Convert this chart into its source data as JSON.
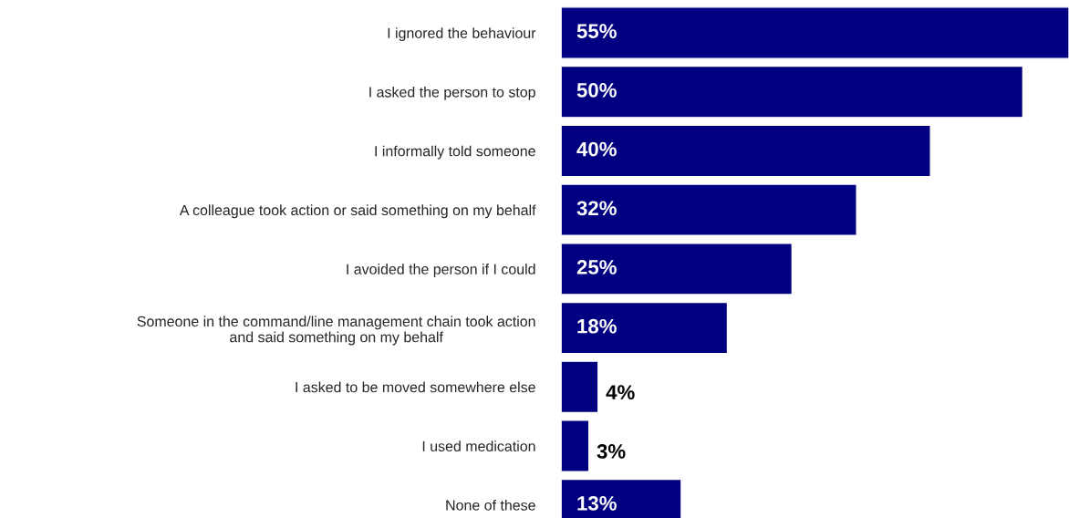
{
  "chart_data": {
    "type": "bar",
    "orientation": "horizontal",
    "categories": [
      "I ignored the behaviour",
      "I asked the person to stop",
      "I informally told someone",
      "A colleague took action or said something on my behalf",
      "I avoided the person if I could",
      "Someone in the command/line management chain took action\nand said something on my behalf",
      "I asked to be moved somewhere else",
      "I used medication",
      "None of these"
    ],
    "values": [
      55,
      50,
      40,
      32,
      25,
      18,
      4,
      3,
      13
    ],
    "value_labels": [
      "55%",
      "50%",
      "40%",
      "32%",
      "25%",
      "18%",
      "4%",
      "3%",
      "13%"
    ],
    "color": "#000080"
  }
}
